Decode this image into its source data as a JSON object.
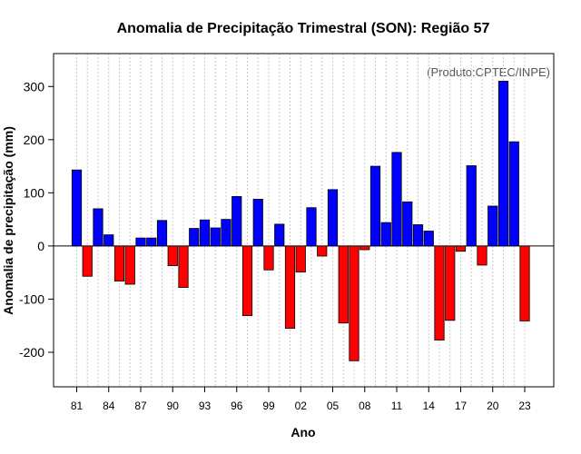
{
  "chart_data": {
    "type": "bar",
    "title": "Anomalia de Precipitação Trimestral (SON): Região 57",
    "xlabel": "Ano",
    "ylabel": "Anomalia de precipitação (mm)",
    "source_note": "(Produto:CPTEC/INPE)",
    "ylim": [
      -265,
      362
    ],
    "yticks": [
      -200,
      -100,
      0,
      100,
      200,
      300
    ],
    "xtick_labels": [
      "81",
      "84",
      "87",
      "90",
      "93",
      "96",
      "99",
      "02",
      "05",
      "08",
      "11",
      "14",
      "17",
      "20",
      "23"
    ],
    "xtick_years": [
      1981,
      1984,
      1987,
      1990,
      1993,
      1996,
      1999,
      2002,
      2005,
      2008,
      2011,
      2014,
      2017,
      2020,
      2023
    ],
    "years": [
      1981,
      1982,
      1983,
      1984,
      1985,
      1986,
      1987,
      1988,
      1989,
      1990,
      1991,
      1992,
      1993,
      1994,
      1995,
      1996,
      1997,
      1998,
      1999,
      2000,
      2001,
      2002,
      2003,
      2004,
      2005,
      2006,
      2007,
      2008,
      2009,
      2010,
      2011,
      2012,
      2013,
      2014,
      2015,
      2016,
      2017,
      2018,
      2019,
      2020,
      2021,
      2022,
      2023
    ],
    "values": [
      143,
      -57,
      70,
      21,
      -66,
      -72,
      15,
      15,
      48,
      -37,
      -78,
      33,
      49,
      34,
      50,
      93,
      -131,
      88,
      -45,
      41,
      -155,
      -49,
      72,
      -19,
      106,
      -145,
      -216,
      -7,
      150,
      44,
      176,
      83,
      40,
      28,
      -177,
      -140,
      -10,
      151,
      -36,
      75,
      310,
      196,
      -141
    ],
    "colors": {
      "positive": "#0000ff",
      "negative": "#ff0000",
      "zero_line": "#000000",
      "grid": "#cccccc"
    },
    "grid": true
  }
}
